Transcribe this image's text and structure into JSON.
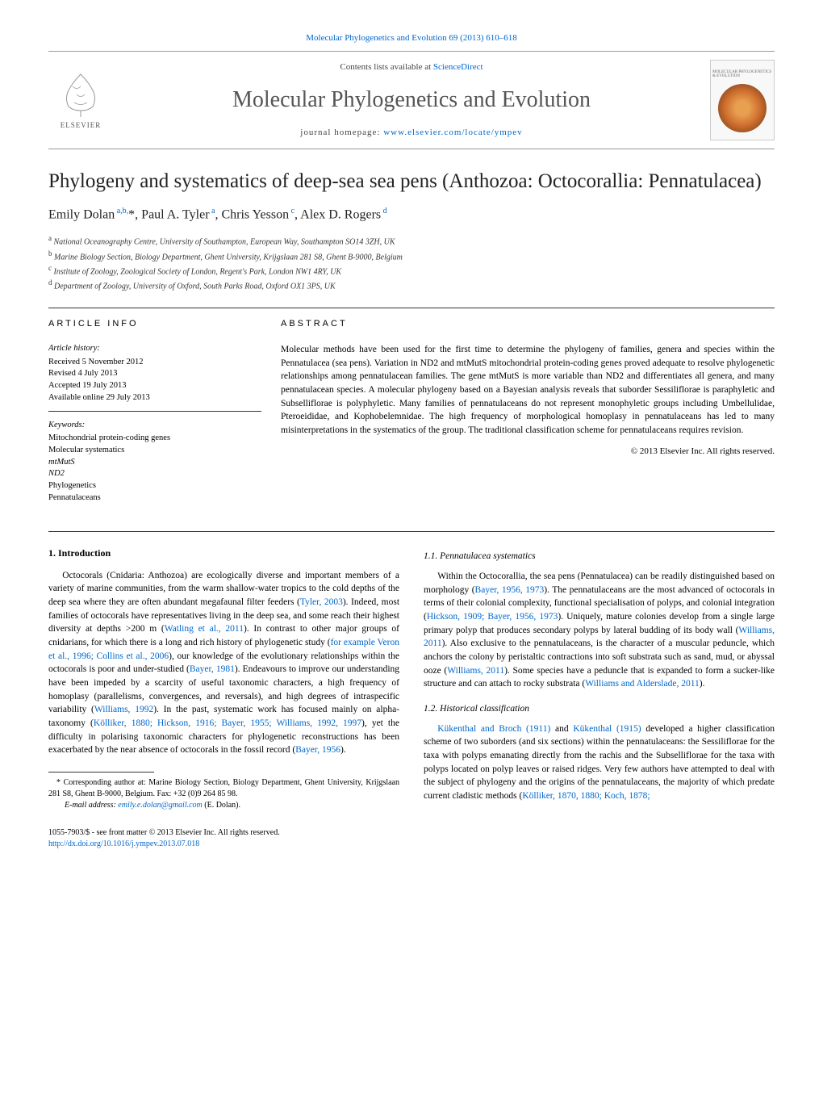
{
  "header": {
    "citation_line_prefix": "Molecular Phylogenetics and Evolution 69 (2013) 610–618",
    "contents_lists": "Contents lists available at ",
    "contents_link": "ScienceDirect",
    "journal_title": "Molecular Phylogenetics and Evolution",
    "homepage_label": "journal homepage: ",
    "homepage_url": "www.elsevier.com/locate/ympev",
    "publisher": "ELSEVIER",
    "cover_label": "MOLECULAR PHYLOGENETICS & EVOLUTION"
  },
  "article": {
    "title": "Phylogeny and systematics of deep-sea sea pens (Anthozoa: Octocorallia: Pennatulacea)",
    "authors_html": "Emily Dolan<sup> a,b,</sup>*, Paul A. Tyler<sup> a</sup>, Chris Yesson<sup> c</sup>, Alex D. Rogers<sup> d</sup>",
    "affiliations": [
      {
        "sup": "a",
        "text": "National Oceanography Centre, University of Southampton, European Way, Southampton SO14 3ZH, UK"
      },
      {
        "sup": "b",
        "text": "Marine Biology Section, Biology Department, Ghent University, Krijgslaan 281 S8, Ghent B-9000, Belgium"
      },
      {
        "sup": "c",
        "text": "Institute of Zoology, Zoological Society of London, Regent's Park, London NW1 4RY, UK"
      },
      {
        "sup": "d",
        "text": "Department of Zoology, University of Oxford, South Parks Road, Oxford OX1 3PS, UK"
      }
    ]
  },
  "article_info": {
    "heading": "ARTICLE INFO",
    "history_label": "Article history:",
    "history": [
      "Received 5 November 2012",
      "Revised 4 July 2013",
      "Accepted 19 July 2013",
      "Available online 29 July 2013"
    ],
    "keywords_label": "Keywords:",
    "keywords": [
      "Mitochondrial protein-coding genes",
      "Molecular systematics",
      "mtMutS",
      "ND2",
      "Phylogenetics",
      "Pennatulaceans"
    ]
  },
  "abstract": {
    "heading": "ABSTRACT",
    "text": "Molecular methods have been used for the first time to determine the phylogeny of families, genera and species within the Pennatulacea (sea pens). Variation in ND2 and mtMutS mitochondrial protein-coding genes proved adequate to resolve phylogenetic relationships among pennatulacean families. The gene mtMutS is more variable than ND2 and differentiates all genera, and many pennatulacean species. A molecular phylogeny based on a Bayesian analysis reveals that suborder Sessiliflorae is paraphyletic and Subselliflorae is polyphyletic. Many families of pennatulaceans do not represent monophyletic groups including Umbellulidae, Pteroeididae, and Kophobelemnidae. The high frequency of morphological homoplasy in pennatulaceans has led to many misinterpretations in the systematics of the group. The traditional classification scheme for pennatulaceans requires revision.",
    "copyright": "© 2013 Elsevier Inc. All rights reserved."
  },
  "body": {
    "left": {
      "section_num": "1.",
      "section_title": "Introduction",
      "para1": "Octocorals (Cnidaria: Anthozoa) are ecologically diverse and important members of a variety of marine communities, from the warm shallow-water tropics to the cold depths of the deep sea where they are often abundant megafaunal filter feeders (Tyler, 2003). Indeed, most families of octocorals have representatives living in the deep sea, and some reach their highest diversity at depths >200 m (Watling et al., 2011). In contrast to other major groups of cnidarians, for which there is a long and rich history of phylogenetic study (for example Veron et al., 1996; Collins et al., 2006), our knowledge of the evolutionary relationships within the octocorals is poor and under-studied (Bayer, 1981). Endeavours to improve our understanding have been impeded by a scarcity of useful taxonomic characters, a high frequency of homoplasy (parallelisms, convergences, and reversals), and high degrees of intraspecific variability (Williams, 1992). In the past, systematic work has focused mainly on alpha-taxonomy (Kölliker, 1880; Hickson, 1916; Bayer, 1955; Williams, 1992, 1997), yet the difficulty in polarising taxonomic characters for phylogenetic reconstructions has been exacerbated by the near absence of octocorals in the fossil record (Bayer, 1956).",
      "footnote_corr": "* Corresponding author at: Marine Biology Section, Biology Department, Ghent University, Krijgslaan 281 S8, Ghent B-9000, Belgium. Fax: +32 (0)9 264 85 98.",
      "footnote_email_label": "E-mail address: ",
      "footnote_email": "emily.e.dolan@gmail.com",
      "footnote_email_suffix": " (E. Dolan).",
      "footer_issn": "1055-7903/$ - see front matter © 2013 Elsevier Inc. All rights reserved.",
      "footer_doi": "http://dx.doi.org/10.1016/j.ympev.2013.07.018"
    },
    "right": {
      "sub11_num": "1.1.",
      "sub11_title": "Pennatulacea systematics",
      "sub11_para": "Within the Octocorallia, the sea pens (Pennatulacea) can be readily distinguished based on morphology (Bayer, 1956, 1973). The pennatulaceans are the most advanced of octocorals in terms of their colonial complexity, functional specialisation of polyps, and colonial integration (Hickson, 1909; Bayer, 1956, 1973). Uniquely, mature colonies develop from a single large primary polyp that produces secondary polyps by lateral budding of its body wall (Williams, 2011). Also exclusive to the pennatulaceans, is the character of a muscular peduncle, which anchors the colony by peristaltic contractions into soft substrata such as sand, mud, or abyssal ooze (Williams, 2011). Some species have a peduncle that is expanded to form a sucker-like structure and can attach to rocky substrata (Williams and Alderslade, 2011).",
      "sub12_num": "1.2.",
      "sub12_title": "Historical classification",
      "sub12_para": "Kükenthal and Broch (1911) and Kükenthal (1915) developed a higher classification scheme of two suborders (and six sections) within the pennatulaceans: the Sessiliflorae for the taxa with polyps emanating directly from the rachis and the Subselliflorae for the taxa with polyps located on polyp leaves or raised ridges. Very few authors have attempted to deal with the subject of phylogeny and the origins of the pennatulaceans, the majority of which predate current cladistic methods (Kölliker, 1870, 1880; Koch, 1878;"
    }
  },
  "colors": {
    "link": "#0066cc",
    "text": "#000000",
    "heading_gray": "#555555",
    "rule": "#333333"
  }
}
